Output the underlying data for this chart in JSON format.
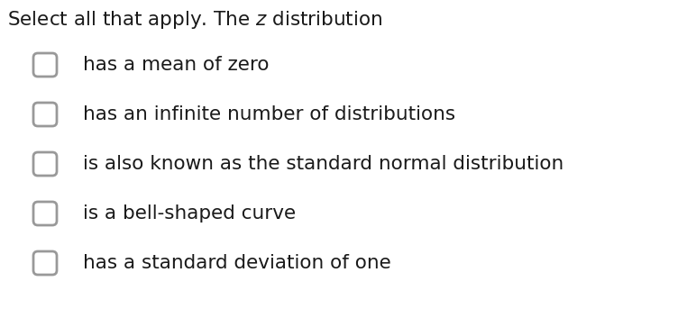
{
  "title": "Select all that apply. The $z$ distribution",
  "options": [
    "has a mean of zero",
    "has an infinite number of distributions",
    "is also known as the standard normal distribution",
    "is a bell-shaped curve",
    "has a standard deviation of one"
  ],
  "background_color": "#ffffff",
  "text_color": "#1a1a1a",
  "checkbox_color": "#999999",
  "title_fontsize": 15.5,
  "option_fontsize": 15.5,
  "font_family": "DejaVu Sans"
}
